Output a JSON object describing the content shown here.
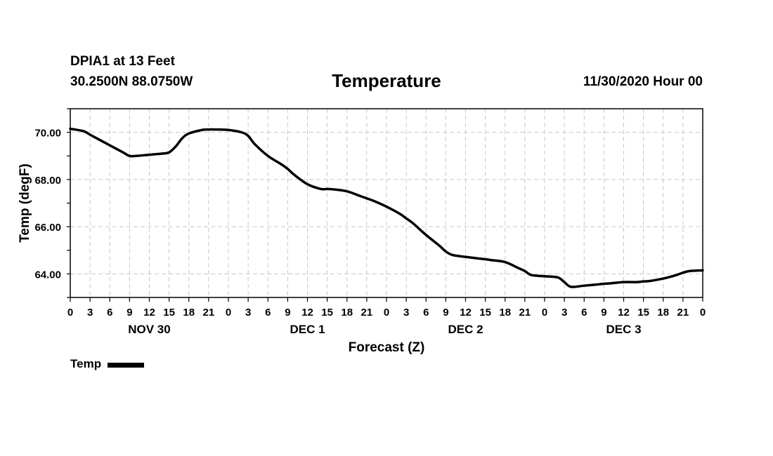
{
  "header": {
    "station": "DPIA1 at 13 Feet",
    "coords": "30.2500N 88.0750W",
    "run": "11/30/2020 Hour 00"
  },
  "chart_data": {
    "type": "line",
    "title": "Temperature",
    "xlabel": "Forecast (Z)",
    "ylabel": "Temp (degF)",
    "xlim": [
      0,
      96
    ],
    "ylim": [
      63.0,
      71.0
    ],
    "yticks": [
      64.0,
      66.0,
      68.0,
      70.0
    ],
    "ytick_labels": [
      "64.00",
      "66.00",
      "68.00",
      "70.00"
    ],
    "xtick_labels": [
      "0",
      "3",
      "6",
      "9",
      "12",
      "15",
      "18",
      "21",
      "0",
      "3",
      "6",
      "9",
      "12",
      "15",
      "18",
      "21",
      "0",
      "3",
      "6",
      "9",
      "12",
      "15",
      "18",
      "21",
      "0",
      "3",
      "6",
      "9",
      "12",
      "15",
      "18",
      "21",
      "0"
    ],
    "day_labels": [
      {
        "label": "NOV 30",
        "hour": 12
      },
      {
        "label": "DEC 1",
        "hour": 36
      },
      {
        "label": "DEC 2",
        "hour": 60
      },
      {
        "label": "DEC 3",
        "hour": 84
      }
    ],
    "grid": true,
    "series": [
      {
        "name": "Temp",
        "color": "#000000",
        "x": [
          0,
          2,
          3,
          4,
          6,
          8,
          9,
          10,
          12,
          14,
          15,
          16,
          17,
          18,
          20,
          21,
          22,
          24,
          26,
          27,
          28,
          30,
          32,
          33,
          34,
          36,
          38,
          39,
          40,
          42,
          44,
          45,
          46,
          48,
          50,
          51,
          52,
          54,
          56,
          57,
          58,
          60,
          62,
          63,
          64,
          66,
          68,
          69,
          70,
          72,
          74,
          75,
          76,
          78,
          80,
          81,
          82,
          84,
          86,
          87,
          88,
          90,
          92,
          93,
          94,
          96
        ],
        "values": [
          70.15,
          70.05,
          69.9,
          69.75,
          69.45,
          69.15,
          69.0,
          69.0,
          69.05,
          69.1,
          69.15,
          69.4,
          69.75,
          69.95,
          70.1,
          70.12,
          70.12,
          70.1,
          70.0,
          69.85,
          69.5,
          69.0,
          68.65,
          68.45,
          68.2,
          67.8,
          67.6,
          67.6,
          67.58,
          67.5,
          67.3,
          67.2,
          67.1,
          66.85,
          66.55,
          66.35,
          66.15,
          65.65,
          65.2,
          64.95,
          64.8,
          64.72,
          64.65,
          64.62,
          64.58,
          64.5,
          64.25,
          64.12,
          63.95,
          63.9,
          63.85,
          63.65,
          63.45,
          63.5,
          63.55,
          63.58,
          63.6,
          63.65,
          63.65,
          63.68,
          63.7,
          63.8,
          63.95,
          64.05,
          64.12,
          64.15
        ]
      }
    ]
  },
  "legend": {
    "label": "Temp"
  }
}
